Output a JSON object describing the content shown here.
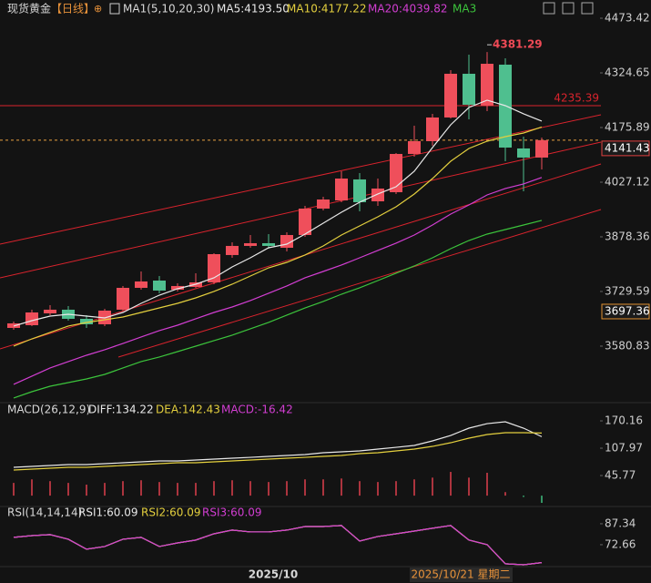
{
  "header": {
    "symbol": "现货黄金",
    "period": "【日线】"
  },
  "cursor_label": "2025/10/21 星期二",
  "chart_data": [
    {
      "type": "candlestick",
      "indicator": "MA1(5,10,20,30)",
      "categories": [
        null,
        null,
        null,
        null,
        null,
        null,
        null,
        null,
        null,
        null,
        null,
        null,
        null,
        null,
        "2025/10",
        null,
        null,
        null,
        null,
        null,
        null,
        null,
        null,
        null,
        null,
        null,
        null,
        null,
        null,
        null
      ],
      "open": [
        3630.4,
        3637.8,
        3670.1,
        3680.0,
        3655.2,
        3640.3,
        3680.0,
        3739.5,
        3759.3,
        3734.5,
        3742.0,
        3754.4,
        3828.8,
        3853.6,
        3861.0,
        3848.6,
        3883.3,
        3955.2,
        3977.5,
        4034.6,
        3975.0,
        3999.8,
        4104.0,
        4138.7,
        4203.2,
        4322.2,
        4235.4,
        4347.0,
        4118.9,
        4094.1
      ],
      "high": [
        3647.8,
        3680.0,
        3692.4,
        3689.9,
        3665.1,
        3682.5,
        3744.5,
        3784.1,
        3771.7,
        3751.9,
        3779.2,
        3833.7,
        3863.5,
        3883.3,
        3885.8,
        3890.7,
        3962.6,
        3987.4,
        4056.9,
        4051.9,
        4037.0,
        4106.5,
        4180.8,
        4213.1,
        4332.1,
        4374.2,
        4381.29,
        4364.3,
        4151.1,
        4148.6
      ],
      "low": [
        3625.4,
        3635.4,
        3665.1,
        3650.2,
        3630.4,
        3635.4,
        3677.5,
        3734.5,
        3724.6,
        3729.6,
        3739.5,
        3749.4,
        3821.3,
        3848.6,
        3846.1,
        3838.7,
        3878.3,
        3950.3,
        3972.6,
        3947.8,
        3962.6,
        3994.9,
        4096.5,
        4126.3,
        4200.7,
        4198.2,
        4220.5,
        4084.1,
        4002.3,
        4061.8
      ],
      "close": [
        3642.8,
        3672.5,
        3680.0,
        3655.2,
        3640.3,
        3677.5,
        3739.5,
        3756.9,
        3732.1,
        3744.5,
        3754.4,
        3831.2,
        3853.6,
        3861.0,
        3853.6,
        3883.3,
        3955.2,
        3980.0,
        4037.0,
        3972.6,
        4009.8,
        4104.0,
        4138.7,
        4203.2,
        4322.2,
        4237.9,
        4349.4,
        4121.3,
        4094.1,
        4141.43
      ],
      "up_color": "#ef4f5b",
      "down_color": "#4fbf8f",
      "series": [
        {
          "name": "MA5:4193.50",
          "color": "#e8e8e8",
          "values": [
            3635.4,
            3650.2,
            3662.6,
            3667.6,
            3662.6,
            3657.7,
            3672.5,
            3697.3,
            3719.6,
            3737.0,
            3749.4,
            3766.8,
            3796.5,
            3821.3,
            3848.6,
            3858.5,
            3885.8,
            3915.5,
            3945.3,
            3972.6,
            3994.9,
            4014.7,
            4056.9,
            4121.3,
            4183.3,
            4230.4,
            4250.3,
            4235.4,
            4213.1,
            4193.5
          ]
        },
        {
          "name": "MA10:4177.22",
          "color": "#e3cf3e",
          "values": [
            3580.8,
            3600.6,
            3618.0,
            3635.4,
            3645.3,
            3652.7,
            3660.1,
            3672.5,
            3684.9,
            3697.3,
            3712.2,
            3729.6,
            3749.4,
            3771.7,
            3794.0,
            3808.9,
            3828.8,
            3853.5,
            3883.3,
            3908.1,
            3932.9,
            3960.2,
            3994.9,
            4037.0,
            4084.1,
            4118.9,
            4138.7,
            4151.1,
            4161.0,
            4177.22
          ]
        },
        {
          "name": "MA20:4039.82",
          "color": "#d23ed2",
          "values": [
            3476.7,
            3499.0,
            3521.3,
            3538.7,
            3556.0,
            3570.9,
            3588.2,
            3605.6,
            3623.0,
            3637.8,
            3655.2,
            3672.5,
            3687.4,
            3704.8,
            3724.6,
            3744.5,
            3766.8,
            3784.1,
            3801.5,
            3821.3,
            3841.2,
            3861.0,
            3883.3,
            3910.6,
            3940.3,
            3965.1,
            3992.4,
            4009.8,
            4022.2,
            4039.82
          ]
        },
        {
          "name": "MA3",
          "color": "#3cc43c",
          "values": [
            3439.5,
            3456.8,
            3471.7,
            3481.6,
            3491.5,
            3503.9,
            3521.3,
            3538.7,
            3551.1,
            3565.9,
            3580.8,
            3595.7,
            3610.6,
            3627.9,
            3645.3,
            3665.1,
            3684.9,
            3702.3,
            3722.1,
            3739.5,
            3759.3,
            3779.2,
            3799.0,
            3821.3,
            3846.1,
            3868.4,
            3885.8,
            3898.2,
            3910.6,
            3923.0
          ]
        }
      ],
      "ylim": [
        3432.0,
        4523.0
      ],
      "yticks": [
        4473.42,
        4324.65,
        4175.89,
        4027.12,
        3878.36,
        3729.59,
        3580.83
      ],
      "levels": [
        {
          "value": 4235.39,
          "color": "#d9232d"
        }
      ],
      "marker_price": 3697.36
    },
    {
      "type": "macd",
      "title": "MACD(26,12,9)",
      "histogram": {
        "label": "MACD:-16.42",
        "up_color": "#e0404c",
        "down_color": "#3fbf7f",
        "values": [
          29,
          37,
          33,
          29,
          25,
          29,
          33,
          35,
          31,
          29,
          29,
          33,
          35,
          33,
          31,
          33,
          37,
          37,
          39,
          33,
          31,
          33,
          37,
          41,
          54,
          41,
          52,
          8,
          -3,
          -16.42
        ]
      },
      "series": [
        {
          "name": "DIFF:134.22",
          "color": "#e8e8e8",
          "values": [
            64.4,
            66.5,
            68.6,
            70.7,
            70.7,
            72.7,
            74.8,
            76.9,
            79.0,
            79.0,
            81.0,
            83.1,
            85.2,
            87.2,
            89.3,
            91.4,
            93.5,
            97.6,
            99.7,
            101.8,
            105.9,
            110.0,
            114.2,
            124.6,
            137.0,
            153.6,
            163.9,
            168.1,
            153.6,
            134.22
          ]
        },
        {
          "name": "DEA:142.43",
          "color": "#e3cf3e",
          "values": [
            58.2,
            60.3,
            62.4,
            64.4,
            64.4,
            66.5,
            68.6,
            70.7,
            72.7,
            74.8,
            74.8,
            76.9,
            79.0,
            81.0,
            83.1,
            85.2,
            87.2,
            89.3,
            91.4,
            95.5,
            97.6,
            101.8,
            105.9,
            112.1,
            120.4,
            130.8,
            139.1,
            143.2,
            143.2,
            142.43
          ]
        }
      ],
      "ylim": [
        -22.6,
        201.3
      ],
      "yticks": [
        170.16,
        107.97,
        45.77
      ]
    },
    {
      "type": "rsi",
      "title": "RSI(14,14,14)",
      "series": [
        {
          "name": "RSI1:60.09",
          "color": "#e8e8e8",
          "values": [
            77.8,
            79.0,
            79.7,
            76.5,
            69.5,
            71.4,
            76.5,
            77.8,
            71.4,
            73.9,
            75.9,
            80.3,
            82.9,
            81.6,
            81.6,
            82.9,
            85.4,
            85.4,
            86.1,
            75.2,
            78.4,
            80.3,
            82.2,
            84.2,
            86.1,
            75.9,
            72.7,
            59.3,
            58.6,
            60.09
          ]
        },
        {
          "name": "RSI2:60.09",
          "color": "#e3cf3e",
          "values": [
            77.8,
            79.0,
            79.7,
            76.5,
            69.5,
            71.4,
            76.5,
            77.8,
            71.4,
            73.9,
            75.9,
            80.3,
            82.9,
            81.6,
            81.6,
            82.9,
            85.4,
            85.4,
            86.1,
            75.2,
            78.4,
            80.3,
            82.2,
            84.2,
            86.1,
            75.9,
            72.7,
            59.3,
            58.6,
            60.09
          ]
        },
        {
          "name": "RSI3:60.09",
          "color": "#d23ed2",
          "values": [
            77.8,
            79.0,
            79.7,
            76.5,
            69.5,
            71.4,
            76.5,
            77.8,
            71.4,
            73.9,
            75.9,
            80.3,
            82.9,
            81.6,
            81.6,
            82.9,
            85.4,
            85.4,
            86.1,
            75.2,
            78.4,
            80.3,
            82.2,
            84.2,
            86.1,
            75.9,
            72.7,
            59.3,
            58.6,
            60.09
          ]
        }
      ],
      "ylim": [
        57.3,
        98.8
      ],
      "yticks": [
        87.34,
        72.66
      ]
    }
  ]
}
